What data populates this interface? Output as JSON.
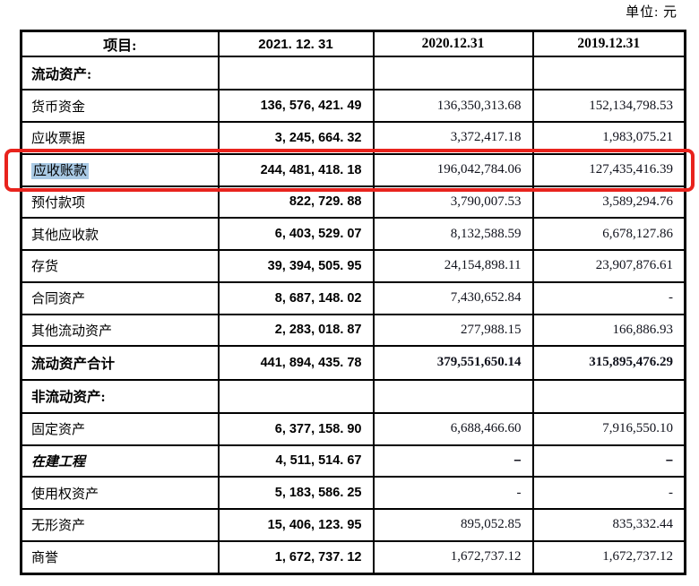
{
  "unit_label": "单位: 元",
  "accent": {
    "red_box": "#e8231d",
    "highlight_blue": "#a9c9e4",
    "border_black": "#000000"
  },
  "table": {
    "headers": [
      "项目:",
      "2021. 12. 31",
      "2020.12.31",
      "2019.12.31"
    ],
    "rows": [
      {
        "label": "流动资产:",
        "style": "section",
        "highlight": false,
        "v2021": "",
        "v2020": "",
        "v2019": ""
      },
      {
        "label": "货币资金",
        "style": "normal",
        "highlight": false,
        "v2021": "136, 576, 421. 49",
        "v2020": "136,350,313.68",
        "v2019": "152,134,798.53"
      },
      {
        "label": "应收票据",
        "style": "normal",
        "highlight": false,
        "v2021": "3, 245, 664. 32",
        "v2020": "3,372,417.18",
        "v2019": "1,983,075.21"
      },
      {
        "label": "应收账款",
        "style": "normal",
        "highlight": true,
        "v2021": "244, 481, 418. 18",
        "v2020": "196,042,784.06",
        "v2019": "127,435,416.39"
      },
      {
        "label": "预付款项",
        "style": "normal",
        "highlight": false,
        "v2021": "822, 729. 88",
        "v2020": "3,790,007.53",
        "v2019": "3,589,294.76"
      },
      {
        "label": "其他应收款",
        "style": "normal",
        "highlight": false,
        "v2021": "6, 403, 529. 07",
        "v2020": "8,132,588.59",
        "v2019": "6,678,127.86"
      },
      {
        "label": "存货",
        "style": "normal",
        "highlight": false,
        "v2021": "39, 394, 505. 95",
        "v2020": "24,154,898.11",
        "v2019": "23,907,876.61"
      },
      {
        "label": "合同资产",
        "style": "normal",
        "highlight": false,
        "v2021": "8, 687, 148. 02",
        "v2020": "7,430,652.84",
        "v2019": "-"
      },
      {
        "label": "其他流动资产",
        "style": "normal",
        "highlight": false,
        "v2021": "2, 283, 018. 87",
        "v2020": "277,988.15",
        "v2019": "166,886.93"
      },
      {
        "label": "流动资产合计",
        "style": "total",
        "highlight": false,
        "v2021": "441, 894, 435. 78",
        "v2020": "379,551,650.14",
        "v2019": "315,895,476.29"
      },
      {
        "label": "非流动资产:",
        "style": "section",
        "highlight": false,
        "v2021": "",
        "v2020": "",
        "v2019": ""
      },
      {
        "label": "固定资产",
        "style": "normal",
        "highlight": false,
        "v2021": "6, 377, 158. 90",
        "v2020": "6,688,466.60",
        "v2019": "7,916,550.10"
      },
      {
        "label": "在建工程",
        "style": "cip",
        "highlight": false,
        "v2021": "4, 511, 514. 67",
        "v2020": "–",
        "v2019": "–"
      },
      {
        "label": "使用权资产",
        "style": "normal",
        "highlight": false,
        "v2021": "5, 183, 586. 25",
        "v2020": "-",
        "v2019": "-"
      },
      {
        "label": "无形资产",
        "style": "normal",
        "highlight": false,
        "v2021": "15, 406, 123. 95",
        "v2020": "895,052.85",
        "v2019": "835,332.44"
      },
      {
        "label": "商誉",
        "style": "normal",
        "highlight": false,
        "v2021": "1, 672, 737. 12",
        "v2020": "1,672,737.12",
        "v2019": "1,672,737.12"
      }
    ]
  }
}
